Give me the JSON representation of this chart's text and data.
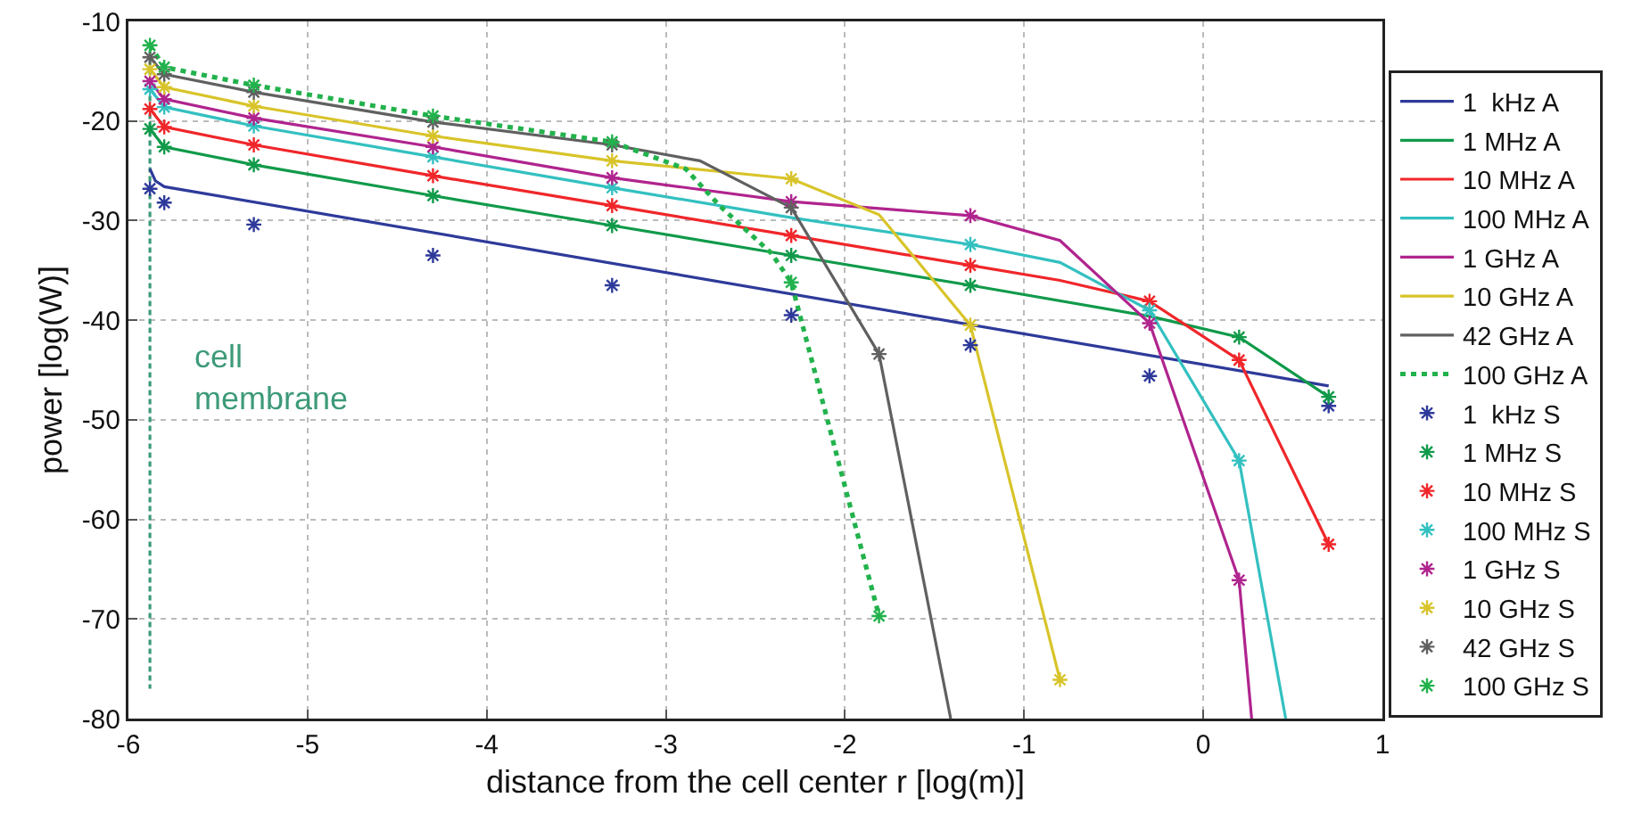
{
  "chart_data": {
    "type": "line",
    "xlabel": "distance from the cell center r [log(m)]",
    "ylabel": "power [log(W)]",
    "xlim": [
      -6,
      1
    ],
    "xticks": [
      -6,
      -5,
      -4,
      -3,
      -2,
      -1,
      0,
      1
    ],
    "ylim": [
      -80,
      -10
    ],
    "yticks": [
      -80,
      -70,
      -60,
      -50,
      -40,
      -30,
      -20,
      -10
    ],
    "grid": true,
    "legend": "right",
    "annotations": [
      "cell\nmembrane"
    ],
    "series": [
      {
        "color": "#3d9a78",
        "line_style": "dashed",
        "marker": "none",
        "x": [
          -5.88,
          -5.88
        ],
        "values": [
          -13,
          -77
        ]
      },
      {
        "name": "1  kHz A",
        "color": "#2e3a9a",
        "line_style": "solid",
        "marker": "none",
        "x": [
          -5.88,
          -5.85,
          -5.8,
          0.7
        ],
        "values": [
          -24.8,
          -26.0,
          -26.6,
          -46.6
        ]
      },
      {
        "name": "1 MHz A",
        "color": "#109a4a",
        "line_style": "solid",
        "marker": "none",
        "x": [
          -5.88,
          -5.8,
          -5.3,
          -4.3,
          -3.3,
          -2.3,
          -1.3,
          -0.3,
          0.2,
          0.7
        ],
        "values": [
          -20.8,
          -22.6,
          -24.4,
          -27.5,
          -30.5,
          -33.5,
          -36.5,
          -39.6,
          -41.7,
          -47.7
        ]
      },
      {
        "name": "10 MHz A",
        "color": "#f0262a",
        "line_style": "solid",
        "marker": "none",
        "x": [
          -5.88,
          -5.8,
          -5.3,
          -4.3,
          -3.3,
          -2.3,
          -1.3,
          -0.8,
          -0.3,
          0.2,
          0.7
        ],
        "values": [
          -18.8,
          -20.6,
          -22.4,
          -25.5,
          -28.5,
          -31.5,
          -34.5,
          -36.0,
          -38.1,
          -44.0,
          -62.5
        ]
      },
      {
        "name": "100 MHz A",
        "color": "#33c0c0",
        "line_style": "solid",
        "marker": "none",
        "x": [
          -5.88,
          -5.8,
          -5.3,
          -4.3,
          -3.3,
          -2.3,
          -1.3,
          -0.8,
          -0.3,
          0.2,
          0.46
        ],
        "values": [
          -16.8,
          -18.6,
          -20.5,
          -23.6,
          -26.7,
          -29.7,
          -32.4,
          -34.2,
          -39.0,
          -54.1,
          -80
        ]
      },
      {
        "name": "1 GHz A",
        "color": "#b0248e",
        "line_style": "solid",
        "marker": "none",
        "x": [
          -5.88,
          -5.8,
          -5.3,
          -4.3,
          -3.3,
          -2.3,
          -1.3,
          -0.8,
          -0.3,
          0.2,
          0.27
        ],
        "values": [
          -16.0,
          -17.8,
          -19.7,
          -22.6,
          -25.7,
          -28.1,
          -29.5,
          -32.0,
          -40.3,
          -66.1,
          -80
        ]
      },
      {
        "name": "10 GHz A",
        "color": "#d8c42a",
        "line_style": "solid",
        "marker": "none",
        "x": [
          -5.88,
          -5.8,
          -5.3,
          -4.3,
          -3.3,
          -2.3,
          -1.81,
          -1.3,
          -0.8
        ],
        "values": [
          -14.8,
          -16.6,
          -18.5,
          -21.5,
          -24.0,
          -25.8,
          -29.4,
          -40.5,
          -76.1
        ]
      },
      {
        "name": "42 GHz A",
        "color": "#606060",
        "line_style": "solid",
        "marker": "none",
        "x": [
          -5.88,
          -5.8,
          -5.3,
          -4.3,
          -3.3,
          -2.81,
          -2.3,
          -1.81,
          -1.41
        ],
        "values": [
          -13.6,
          -15.3,
          -17.1,
          -20.1,
          -22.4,
          -24.0,
          -28.7,
          -43.4,
          -80
        ]
      },
      {
        "name": "100 GHz A",
        "color": "#22b24c",
        "line_style": "dotted",
        "marker": "none",
        "x": [
          -5.88,
          -5.8,
          -5.3,
          -4.3,
          -3.3,
          -2.89,
          -2.7,
          -2.41,
          -2.3,
          -1.81
        ],
        "values": [
          -12.4,
          -14.6,
          -16.4,
          -19.5,
          -22.1,
          -24.8,
          -28.5,
          -33.3,
          -36.2,
          -69.7
        ]
      },
      {
        "name": "1  kHz S",
        "type": "scatter",
        "color": "#2e3a9a",
        "marker": "cross",
        "x": [
          -5.88,
          -5.8,
          -5.3,
          -4.3,
          -3.3,
          -2.3,
          -1.3,
          -0.3,
          0.7
        ],
        "values": [
          -26.8,
          -28.2,
          -30.4,
          -33.5,
          -36.5,
          -39.5,
          -42.5,
          -45.6,
          -48.6
        ]
      },
      {
        "name": "1 MHz S",
        "type": "scatter",
        "color": "#109a4a",
        "marker": "cross",
        "x": [
          -5.88,
          -5.8,
          -5.3,
          -4.3,
          -3.3,
          -2.3,
          -1.3,
          -0.3,
          0.2,
          0.7
        ],
        "values": [
          -20.8,
          -22.6,
          -24.4,
          -27.5,
          -30.5,
          -33.5,
          -36.5,
          null,
          -41.7,
          -47.7
        ]
      },
      {
        "name": "10 MHz S",
        "type": "scatter",
        "color": "#f0262a",
        "marker": "cross",
        "x": [
          -5.88,
          -5.8,
          -5.3,
          -4.3,
          -3.3,
          -2.3,
          -1.3,
          -0.3,
          0.2,
          0.7
        ],
        "values": [
          -18.8,
          -20.6,
          -22.4,
          -25.5,
          -28.5,
          -31.5,
          -34.5,
          -38.1,
          -44.0,
          -62.5
        ]
      },
      {
        "name": "100 MHz S",
        "type": "scatter",
        "color": "#33c0c0",
        "marker": "cross",
        "x": [
          -5.88,
          -5.8,
          -5.3,
          -4.3,
          -3.3,
          -2.3,
          -1.3,
          -0.3,
          0.2
        ],
        "values": [
          -16.8,
          -18.6,
          -20.5,
          -23.6,
          -26.7,
          null,
          -32.4,
          -39.0,
          -54.1
        ]
      },
      {
        "name": "1 GHz S",
        "type": "scatter",
        "color": "#b0248e",
        "marker": "cross",
        "x": [
          -5.88,
          -5.8,
          -5.3,
          -4.3,
          -3.3,
          -2.3,
          -1.3,
          -0.3,
          0.2
        ],
        "values": [
          -16.0,
          -17.8,
          -19.7,
          -22.6,
          -25.7,
          -28.1,
          -29.5,
          -40.3,
          -66.1
        ]
      },
      {
        "name": "10 GHz S",
        "type": "scatter",
        "color": "#d8c42a",
        "marker": "cross",
        "x": [
          -5.88,
          -5.8,
          -5.3,
          -4.3,
          -3.3,
          -2.3,
          -1.3,
          -0.8
        ],
        "values": [
          -14.8,
          -16.6,
          -18.5,
          -21.5,
          -24.0,
          -25.8,
          -40.5,
          -76.1
        ]
      },
      {
        "name": "42 GHz S",
        "type": "scatter",
        "color": "#606060",
        "marker": "cross",
        "x": [
          -5.88,
          -5.8,
          -5.3,
          -4.3,
          -3.3,
          -2.3,
          -1.81
        ],
        "values": [
          -13.6,
          -15.3,
          -17.1,
          -20.1,
          -22.4,
          -28.7,
          -43.4
        ]
      },
      {
        "name": "100 GHz S",
        "type": "scatter",
        "color": "#22b24c",
        "marker": "cross",
        "x": [
          -5.88,
          -5.8,
          -5.3,
          -4.3,
          -3.3,
          -2.3,
          -1.81
        ],
        "values": [
          -12.4,
          -14.6,
          -16.4,
          -19.5,
          -22.1,
          -36.2,
          -69.7
        ]
      }
    ]
  }
}
